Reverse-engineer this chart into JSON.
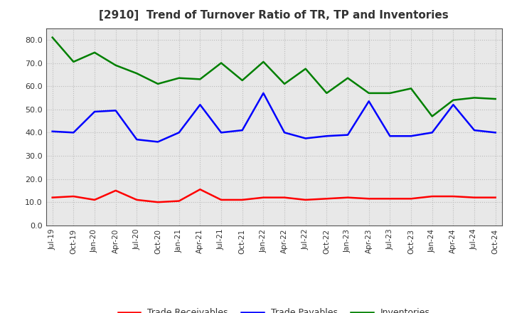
{
  "title": "[2910]  Trend of Turnover Ratio of TR, TP and Inventories",
  "x_labels": [
    "Jul-19",
    "Oct-19",
    "Jan-20",
    "Apr-20",
    "Jul-20",
    "Oct-20",
    "Jan-21",
    "Apr-21",
    "Jul-21",
    "Oct-21",
    "Jan-22",
    "Apr-22",
    "Jul-22",
    "Oct-22",
    "Jan-23",
    "Apr-23",
    "Jul-23",
    "Oct-23",
    "Jan-24",
    "Apr-24",
    "Jul-24",
    "Oct-24"
  ],
  "trade_receivables": [
    12.0,
    12.5,
    11.0,
    15.0,
    11.0,
    10.0,
    10.5,
    15.5,
    11.0,
    11.0,
    12.0,
    12.0,
    11.0,
    11.5,
    12.0,
    11.5,
    11.5,
    11.5,
    12.5,
    12.5,
    12.0,
    12.0
  ],
  "trade_payables": [
    40.5,
    40.0,
    49.0,
    49.5,
    37.0,
    36.0,
    40.0,
    52.0,
    40.0,
    41.0,
    57.0,
    40.0,
    37.5,
    38.5,
    39.0,
    53.5,
    38.5,
    38.5,
    40.0,
    52.0,
    41.0,
    40.0
  ],
  "inventories": [
    81.0,
    70.5,
    74.5,
    69.0,
    65.5,
    61.0,
    63.5,
    63.0,
    70.0,
    62.5,
    70.5,
    61.0,
    67.5,
    57.0,
    63.5,
    57.0,
    57.0,
    59.0,
    47.0,
    54.0,
    55.0,
    54.5
  ],
  "tr_color": "#ff0000",
  "tp_color": "#0000ff",
  "inv_color": "#008000",
  "ylim": [
    0.0,
    85.0
  ],
  "yticks": [
    0.0,
    10.0,
    20.0,
    30.0,
    40.0,
    50.0,
    60.0,
    70.0,
    80.0
  ],
  "legend_labels": [
    "Trade Receivables",
    "Trade Payables",
    "Inventories"
  ],
  "plot_bg_color": "#e8e8e8",
  "fig_bg_color": "#ffffff",
  "grid_color": "#bbbbbb",
  "title_color": "#333333",
  "line_width": 1.8
}
